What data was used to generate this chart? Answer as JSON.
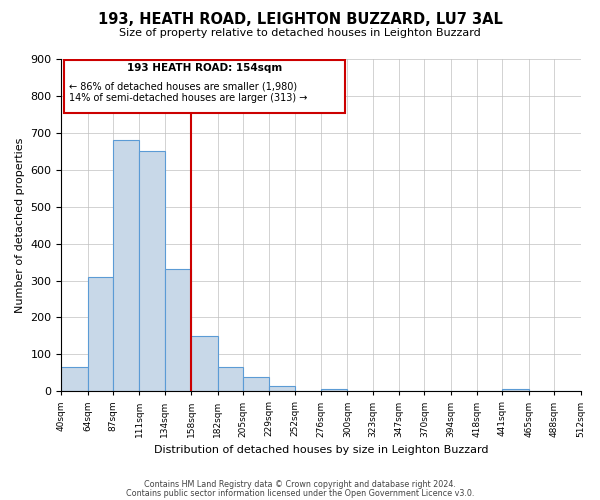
{
  "title": "193, HEATH ROAD, LEIGHTON BUZZARD, LU7 3AL",
  "subtitle": "Size of property relative to detached houses in Leighton Buzzard",
  "xlabel": "Distribution of detached houses by size in Leighton Buzzard",
  "ylabel": "Number of detached properties",
  "bar_edges": [
    40,
    64,
    87,
    111,
    134,
    158,
    182,
    205,
    229,
    252,
    276,
    300,
    323,
    347,
    370,
    394,
    418,
    441,
    465,
    488,
    512
  ],
  "bar_heights": [
    65,
    310,
    680,
    650,
    330,
    150,
    65,
    38,
    15,
    0,
    5,
    0,
    0,
    0,
    0,
    0,
    0,
    5,
    0,
    0
  ],
  "bar_color": "#c8d8e8",
  "bar_edge_color": "#5b9bd5",
  "ref_line_x": 158,
  "ref_line_color": "#cc0000",
  "annotation_title": "193 HEATH ROAD: 154sqm",
  "annotation_line1": "← 86% of detached houses are smaller (1,980)",
  "annotation_line2": "14% of semi-detached houses are larger (313) →",
  "annotation_box_edge": "#cc0000",
  "ylim": [
    0,
    900
  ],
  "yticks": [
    0,
    100,
    200,
    300,
    400,
    500,
    600,
    700,
    800,
    900
  ],
  "tick_labels": [
    "40sqm",
    "64sqm",
    "87sqm",
    "111sqm",
    "134sqm",
    "158sqm",
    "182sqm",
    "205sqm",
    "229sqm",
    "252sqm",
    "276sqm",
    "300sqm",
    "323sqm",
    "347sqm",
    "370sqm",
    "394sqm",
    "418sqm",
    "441sqm",
    "465sqm",
    "488sqm",
    "512sqm"
  ],
  "footer1": "Contains HM Land Registry data © Crown copyright and database right 2024.",
  "footer2": "Contains public sector information licensed under the Open Government Licence v3.0.",
  "background_color": "#ffffff",
  "grid_color": "#c0c0c0"
}
